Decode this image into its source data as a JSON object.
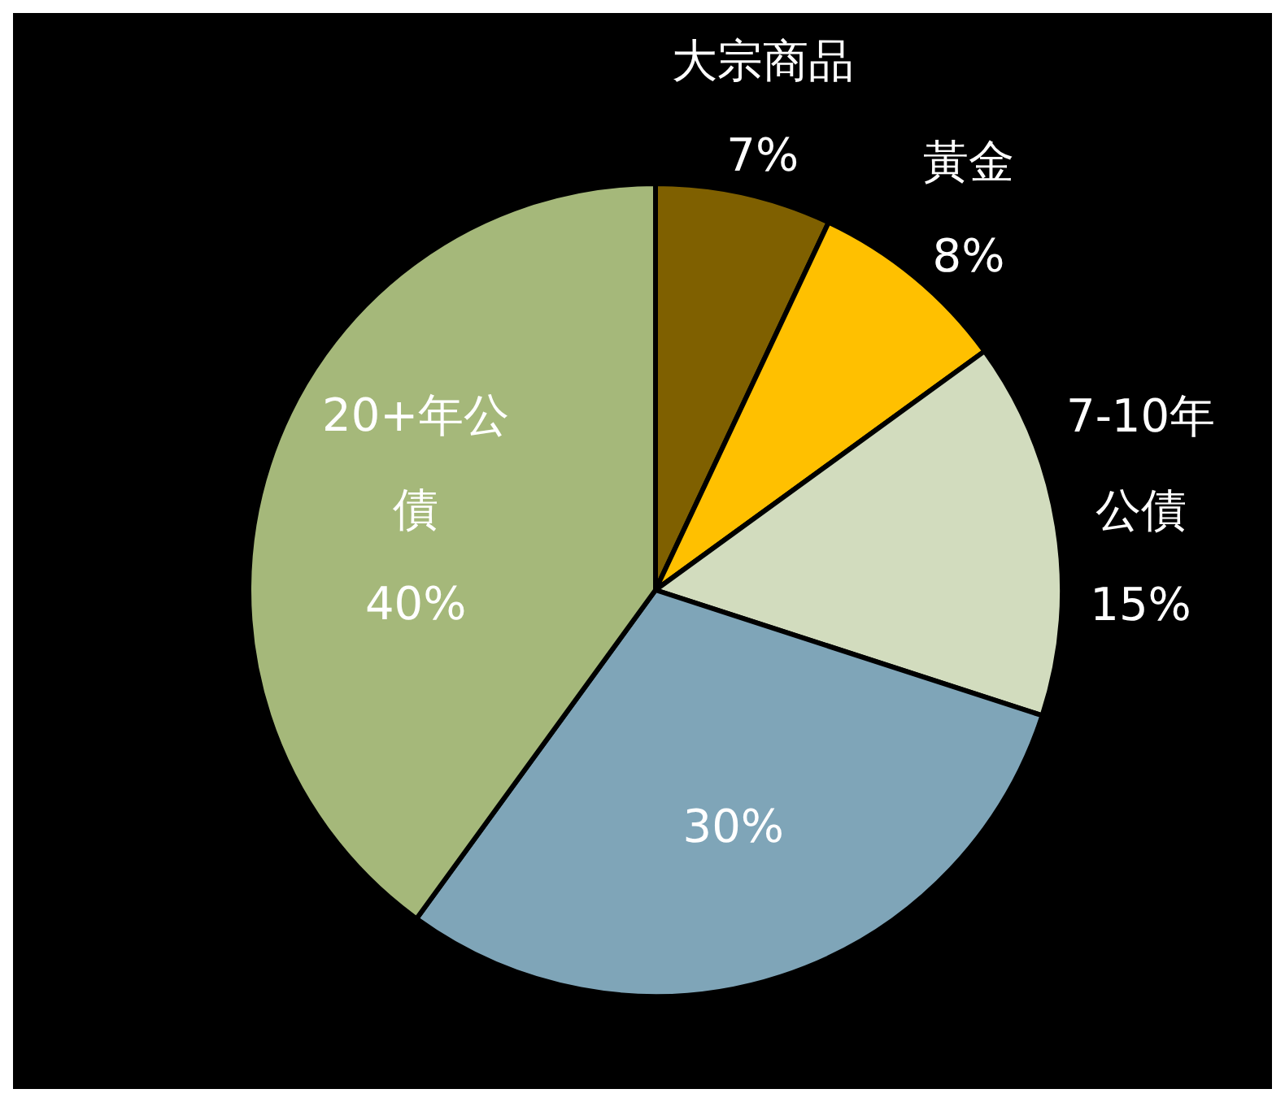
{
  "chart_data": {
    "type": "pie",
    "categories": [
      "大宗商品",
      "黃金",
      "7-10年公債",
      null,
      "20+年公債"
    ],
    "values": [
      7,
      8,
      15,
      30,
      40
    ],
    "colors": [
      "#7f6000",
      "#ffc000",
      "#d2dcbe",
      "#7fa5b8",
      "#a5b87a"
    ],
    "value_labels": [
      "7%",
      "8%",
      "15%",
      "30%",
      "40%"
    ]
  }
}
